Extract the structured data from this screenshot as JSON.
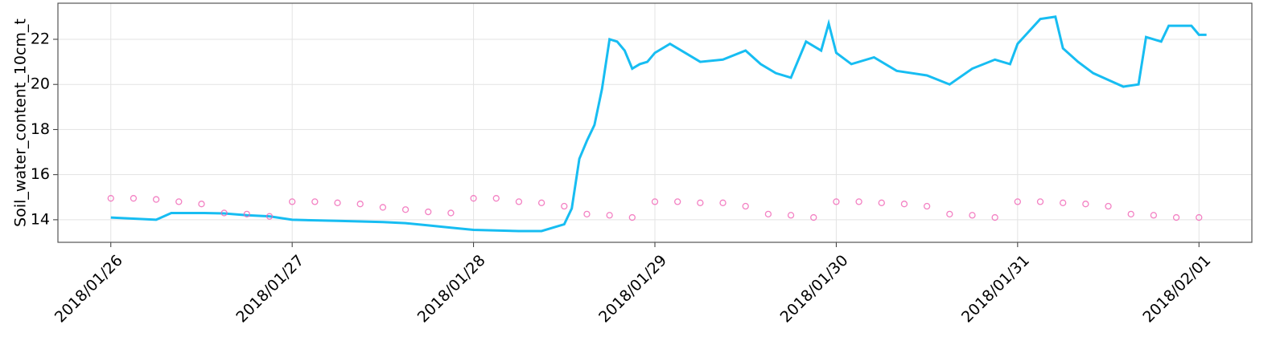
{
  "chart_data": {
    "type": "line",
    "ylabel": "Soil_water_content_10cm_t",
    "xlim": [
      "2018-01-25 17:00",
      "2018-02-01 07:00"
    ],
    "xticks": [
      {
        "value": "2018-01-26",
        "label": "2018/01/26"
      },
      {
        "value": "2018-01-27",
        "label": "2018/01/27"
      },
      {
        "value": "2018-01-28",
        "label": "2018/01/28"
      },
      {
        "value": "2018-01-29",
        "label": "2018/01/29"
      },
      {
        "value": "2018-01-30",
        "label": "2018/01/30"
      },
      {
        "value": "2018-01-31",
        "label": "2018/01/31"
      },
      {
        "value": "2018-02-01",
        "label": "2018/02/01"
      }
    ],
    "ylim": [
      13,
      23.6
    ],
    "yticks": [
      14,
      16,
      18,
      20,
      22
    ],
    "grid": true,
    "series": [
      {
        "type": "line",
        "color": "#17bdf2",
        "x": [
          "2018-01-26 00:00",
          "2018-01-26 03:00",
          "2018-01-26 06:00",
          "2018-01-26 08:00",
          "2018-01-26 12:00",
          "2018-01-26 15:00",
          "2018-01-26 18:00",
          "2018-01-26 21:00",
          "2018-01-27 00:00",
          "2018-01-27 06:00",
          "2018-01-27 12:00",
          "2018-01-27 15:00",
          "2018-01-27 18:00",
          "2018-01-27 21:00",
          "2018-01-28 00:00",
          "2018-01-28 06:00",
          "2018-01-28 09:00",
          "2018-01-28 12:00",
          "2018-01-28 13:00",
          "2018-01-28 14:00",
          "2018-01-28 15:00",
          "2018-01-28 16:00",
          "2018-01-28 17:00",
          "2018-01-28 18:00",
          "2018-01-28 19:00",
          "2018-01-28 20:00",
          "2018-01-28 21:00",
          "2018-01-28 22:00",
          "2018-01-28 23:00",
          "2018-01-29 00:00",
          "2018-01-29 02:00",
          "2018-01-29 04:00",
          "2018-01-29 06:00",
          "2018-01-29 09:00",
          "2018-01-29 12:00",
          "2018-01-29 14:00",
          "2018-01-29 16:00",
          "2018-01-29 18:00",
          "2018-01-29 20:00",
          "2018-01-29 22:00",
          "2018-01-29 23:00",
          "2018-01-30 00:00",
          "2018-01-30 02:00",
          "2018-01-30 05:00",
          "2018-01-30 08:00",
          "2018-01-30 12:00",
          "2018-01-30 15:00",
          "2018-01-30 18:00",
          "2018-01-30 21:00",
          "2018-01-30 23:00",
          "2018-01-31 00:00",
          "2018-01-31 03:00",
          "2018-01-31 05:00",
          "2018-01-31 06:00",
          "2018-01-31 08:00",
          "2018-01-31 10:00",
          "2018-01-31 12:00",
          "2018-01-31 14:00",
          "2018-01-31 16:00",
          "2018-01-31 17:00",
          "2018-01-31 19:00",
          "2018-01-31 20:00",
          "2018-01-31 22:00",
          "2018-01-31 23:00",
          "2018-02-01 00:00",
          "2018-02-01 01:00"
        ],
        "values": [
          14.1,
          14.05,
          14.0,
          14.3,
          14.3,
          14.28,
          14.2,
          14.15,
          14.0,
          13.95,
          13.9,
          13.85,
          13.75,
          13.65,
          13.55,
          13.5,
          13.5,
          13.8,
          14.5,
          16.7,
          17.5,
          18.2,
          19.8,
          22.0,
          21.9,
          21.5,
          20.7,
          20.9,
          21.0,
          21.4,
          21.8,
          21.4,
          21.0,
          21.1,
          21.5,
          20.9,
          20.5,
          20.3,
          21.9,
          21.5,
          22.7,
          21.4,
          20.9,
          21.2,
          20.6,
          20.4,
          20.0,
          20.7,
          21.1,
          20.9,
          21.8,
          22.9,
          23.0,
          21.6,
          21.0,
          20.5,
          20.2,
          19.9,
          20.0,
          22.1,
          21.9,
          22.6,
          22.6,
          22.6,
          22.2,
          22.2
        ]
      },
      {
        "type": "scatter",
        "color": "#f062b4",
        "x": [
          "2018-01-26 00:00",
          "2018-01-26 03:00",
          "2018-01-26 06:00",
          "2018-01-26 09:00",
          "2018-01-26 12:00",
          "2018-01-26 15:00",
          "2018-01-26 18:00",
          "2018-01-26 21:00",
          "2018-01-27 00:00",
          "2018-01-27 03:00",
          "2018-01-27 06:00",
          "2018-01-27 09:00",
          "2018-01-27 12:00",
          "2018-01-27 15:00",
          "2018-01-27 18:00",
          "2018-01-27 21:00",
          "2018-01-28 00:00",
          "2018-01-28 03:00",
          "2018-01-28 06:00",
          "2018-01-28 09:00",
          "2018-01-28 12:00",
          "2018-01-28 15:00",
          "2018-01-28 18:00",
          "2018-01-28 21:00",
          "2018-01-29 00:00",
          "2018-01-29 03:00",
          "2018-01-29 06:00",
          "2018-01-29 09:00",
          "2018-01-29 12:00",
          "2018-01-29 15:00",
          "2018-01-29 18:00",
          "2018-01-29 21:00",
          "2018-01-30 00:00",
          "2018-01-30 03:00",
          "2018-01-30 06:00",
          "2018-01-30 09:00",
          "2018-01-30 12:00",
          "2018-01-30 15:00",
          "2018-01-30 18:00",
          "2018-01-30 21:00",
          "2018-01-31 00:00",
          "2018-01-31 03:00",
          "2018-01-31 06:00",
          "2018-01-31 09:00",
          "2018-01-31 12:00",
          "2018-01-31 15:00",
          "2018-01-31 18:00",
          "2018-01-31 21:00",
          "2018-02-01 00:00"
        ],
        "values": [
          14.95,
          14.95,
          14.9,
          14.8,
          14.7,
          14.3,
          14.25,
          14.15,
          14.8,
          14.8,
          14.75,
          14.7,
          14.55,
          14.45,
          14.35,
          14.3,
          14.95,
          14.95,
          14.8,
          14.75,
          14.6,
          14.25,
          14.2,
          14.1,
          14.8,
          14.8,
          14.75,
          14.75,
          14.6,
          14.25,
          14.2,
          14.1,
          14.8,
          14.8,
          14.75,
          14.7,
          14.6,
          14.25,
          14.2,
          14.1,
          14.8,
          14.8,
          14.75,
          14.7,
          14.6,
          14.25,
          14.2,
          14.1,
          14.1
        ]
      }
    ]
  }
}
